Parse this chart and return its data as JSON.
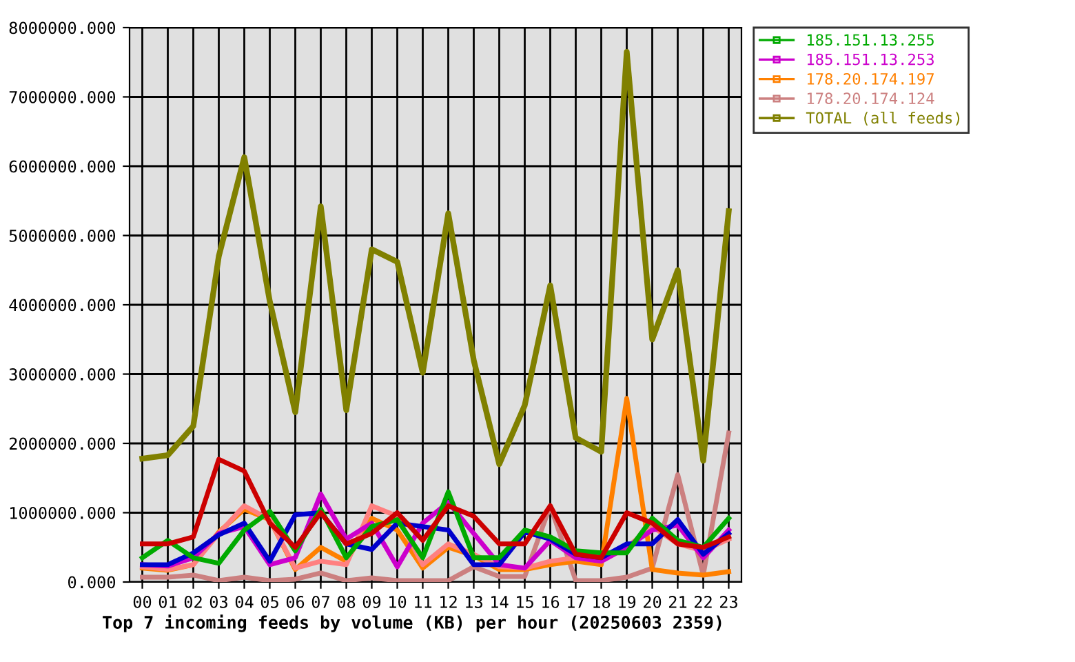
{
  "chart_data": {
    "type": "line",
    "title": "Top 7 incoming feeds by volume (KB) per hour (20250603 2359)",
    "categories": [
      "00",
      "01",
      "02",
      "03",
      "04",
      "05",
      "06",
      "07",
      "08",
      "09",
      "10",
      "11",
      "12",
      "13",
      "14",
      "15",
      "16",
      "17",
      "18",
      "19",
      "20",
      "21",
      "22",
      "23"
    ],
    "series": [
      {
        "color": "#cc0000",
        "values": [
          550000,
          550000,
          650000,
          1770000,
          1600000,
          850000,
          500000,
          1000000,
          550000,
          700000,
          1000000,
          600000,
          1100000,
          950000,
          550000,
          550000,
          1100000,
          400000,
          350000,
          1000000,
          850000,
          550000,
          500000,
          650000
        ]
      },
      {
        "name": "185.151.13.255",
        "color": "#00aa00",
        "values": [
          350000,
          600000,
          350000,
          270000,
          750000,
          1020000,
          450000,
          1050000,
          350000,
          800000,
          900000,
          350000,
          1300000,
          350000,
          350000,
          750000,
          650000,
          450000,
          420000,
          420000,
          920000,
          600000,
          500000,
          920000
        ]
      },
      {
        "color": "#0000cc",
        "values": [
          250000,
          250000,
          420000,
          680000,
          850000,
          300000,
          970000,
          1000000,
          550000,
          470000,
          850000,
          800000,
          750000,
          250000,
          250000,
          720000,
          620000,
          400000,
          350000,
          550000,
          550000,
          900000,
          400000,
          700000
        ]
      },
      {
        "name": "185.151.13.253",
        "color": "#cc00cc",
        "values": [
          250000,
          230000,
          350000,
          700000,
          800000,
          250000,
          350000,
          1270000,
          620000,
          850000,
          220000,
          850000,
          1150000,
          700000,
          250000,
          200000,
          600000,
          350000,
          300000,
          500000,
          750000,
          820000,
          350000,
          750000
        ]
      },
      {
        "color": "#ff8080",
        "values": [
          220000,
          180000,
          250000,
          700000,
          1100000,
          900000,
          200000,
          300000,
          250000,
          1100000,
          950000,
          250000,
          550000,
          400000,
          220000,
          200000,
          300000,
          350000,
          300000,
          500000,
          800000,
          550000,
          450000,
          620000
        ]
      },
      {
        "name": "178.20.174.197",
        "color": "#ff8000",
        "values": [
          200000,
          170000,
          250000,
          720000,
          1050000,
          900000,
          180000,
          500000,
          300000,
          920000,
          750000,
          200000,
          500000,
          380000,
          180000,
          180000,
          250000,
          300000,
          250000,
          2650000,
          180000,
          130000,
          100000,
          150000
        ]
      },
      {
        "name": "178.20.174.124",
        "color": "#cc8080",
        "values": [
          70000,
          70000,
          100000,
          20000,
          70000,
          20000,
          40000,
          130000,
          20000,
          60000,
          20000,
          20000,
          20000,
          220000,
          80000,
          80000,
          1100000,
          20000,
          20000,
          70000,
          200000,
          1550000,
          100000,
          2150000
        ]
      },
      {
        "name": "TOTAL (all feeds)",
        "color": "#808000",
        "values": [
          1780000,
          1830000,
          2250000,
          4700000,
          6130000,
          4050000,
          2450000,
          5420000,
          2480000,
          4800000,
          4620000,
          3020000,
          5320000,
          3200000,
          1700000,
          2550000,
          4280000,
          2080000,
          1880000,
          7650000,
          3500000,
          4500000,
          1750000,
          5350000
        ]
      }
    ],
    "ylim": [
      0,
      8000000
    ],
    "yticks": [
      {
        "value": 0,
        "label": "0.000"
      },
      {
        "value": 1000000,
        "label": "1000000.000"
      },
      {
        "value": 2000000,
        "label": "2000000.000"
      },
      {
        "value": 3000000,
        "label": "3000000.000"
      },
      {
        "value": 4000000,
        "label": "4000000.000"
      },
      {
        "value": 5000000,
        "label": "5000000.000"
      },
      {
        "value": 6000000,
        "label": "6000000.000"
      },
      {
        "value": 7000000,
        "label": "7000000.000"
      },
      {
        "value": 8000000,
        "label": "8000000.000"
      }
    ],
    "grid": true,
    "legend": "right",
    "marker": "none",
    "line_style": "solid"
  }
}
